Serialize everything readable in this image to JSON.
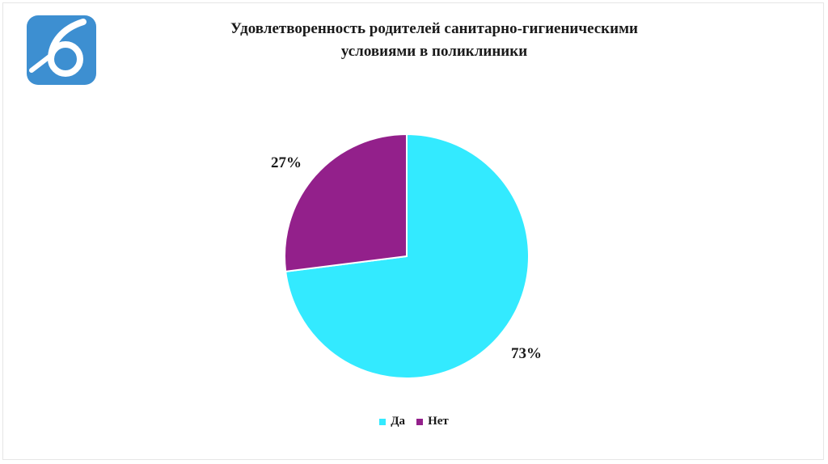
{
  "header": {
    "title_line1": "Удовлетворенность родителей санитарно-гигиеническими",
    "title_line2": "условиями в поликлиники",
    "logo_icon": "digit-six-logo-icon",
    "logo_color": "#3d8fd1"
  },
  "chart_data": {
    "type": "pie",
    "title": "Удовлетворенность родителей санитарно-гигиеническими условиями в поликлиники",
    "categories": [
      "Да",
      "Нет"
    ],
    "values": [
      73,
      27
    ],
    "labels": [
      "73%",
      "27%"
    ],
    "colors": [
      "#33eaff",
      "#93208b"
    ],
    "legend_position": "bottom"
  }
}
